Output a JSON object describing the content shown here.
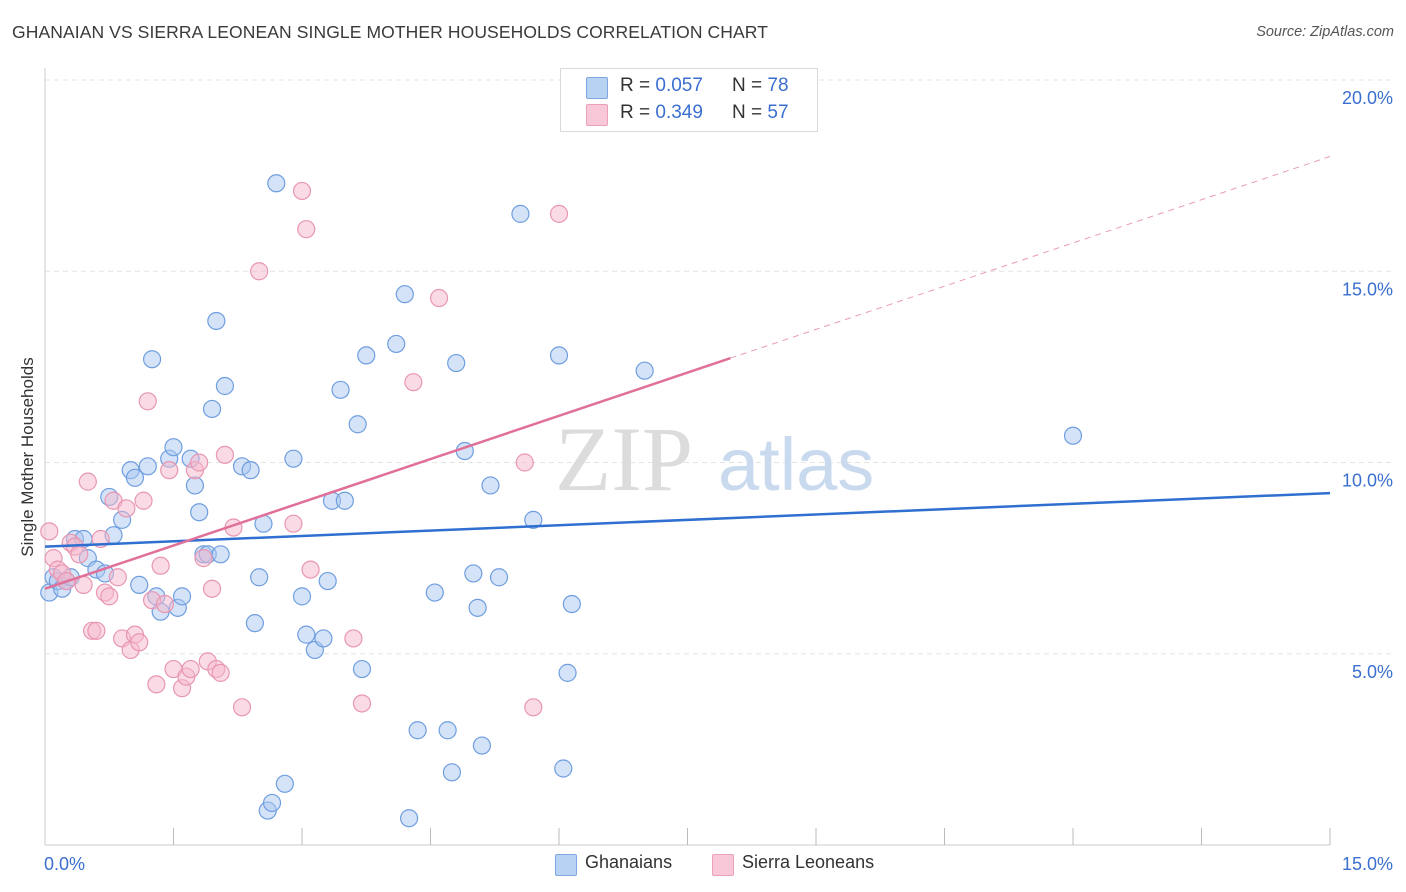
{
  "title": "GHANAIAN VS SIERRA LEONEAN SINGLE MOTHER HOUSEHOLDS CORRELATION CHART",
  "source": "Source: ZipAtlas.com",
  "watermark": {
    "zip": "ZIP",
    "atlas": "atlas"
  },
  "legend": {
    "r_label": "R =",
    "n_label": "N =",
    "rows": [
      {
        "r": "0.057",
        "n": "78"
      },
      {
        "r": "0.349",
        "n": "57"
      }
    ]
  },
  "colors": {
    "blue_fill": "#a9c8f0",
    "blue_stroke": "#6f9ee0",
    "blue_line": "#2f6fd0",
    "pink_fill": "#f5b8cc",
    "pink_stroke": "#e896b2",
    "pink_line": "#e0709a",
    "axis_text": "#3a6fd0",
    "grid": "#e3e3e3"
  },
  "chart_data": {
    "type": "scatter",
    "title": "GHANAIAN VS SIERRA LEONEAN SINGLE MOTHER HOUSEHOLDS CORRELATION CHART",
    "xlabel": "",
    "ylabel": "Single Mother Households",
    "xlim": [
      0,
      15
    ],
    "ylim": [
      0,
      20
    ],
    "x_tick_labels": [
      "0.0%",
      "15.0%"
    ],
    "y_ticks": [
      5,
      10,
      15,
      20
    ],
    "y_tick_labels": [
      "5.0%",
      "10.0%",
      "15.0%",
      "20.0%"
    ],
    "grid": true,
    "legend_position": "bottom",
    "series": [
      {
        "name": "Ghanaians",
        "color": "#a9c8f0",
        "trend": {
          "x": [
            0,
            15
          ],
          "y": [
            7.8,
            9.2
          ],
          "dashed_from": null
        },
        "points": [
          [
            0.05,
            6.6
          ],
          [
            0.1,
            7.0
          ],
          [
            0.15,
            6.9
          ],
          [
            0.2,
            6.7
          ],
          [
            0.25,
            6.9
          ],
          [
            0.3,
            7.0
          ],
          [
            0.35,
            8.0
          ],
          [
            0.45,
            8.0
          ],
          [
            0.5,
            7.5
          ],
          [
            0.6,
            7.2
          ],
          [
            0.7,
            7.1
          ],
          [
            0.75,
            9.1
          ],
          [
            0.8,
            8.1
          ],
          [
            0.9,
            8.5
          ],
          [
            1.0,
            9.8
          ],
          [
            1.05,
            9.6
          ],
          [
            1.1,
            6.8
          ],
          [
            1.2,
            9.9
          ],
          [
            1.25,
            12.7
          ],
          [
            1.3,
            6.5
          ],
          [
            1.35,
            6.1
          ],
          [
            1.45,
            10.1
          ],
          [
            1.5,
            10.4
          ],
          [
            1.55,
            6.2
          ],
          [
            1.6,
            6.5
          ],
          [
            1.7,
            10.1
          ],
          [
            1.75,
            9.4
          ],
          [
            1.8,
            8.7
          ],
          [
            1.85,
            7.6
          ],
          [
            1.9,
            7.6
          ],
          [
            1.95,
            11.4
          ],
          [
            2.0,
            13.7
          ],
          [
            2.05,
            7.6
          ],
          [
            2.1,
            12.0
          ],
          [
            2.3,
            9.9
          ],
          [
            2.4,
            9.8
          ],
          [
            2.45,
            5.8
          ],
          [
            2.5,
            7.0
          ],
          [
            2.55,
            8.4
          ],
          [
            2.6,
            0.9
          ],
          [
            2.65,
            1.1
          ],
          [
            2.7,
            17.3
          ],
          [
            2.8,
            1.6
          ],
          [
            2.9,
            10.1
          ],
          [
            3.0,
            6.5
          ],
          [
            3.05,
            5.5
          ],
          [
            3.15,
            5.1
          ],
          [
            3.25,
            5.4
          ],
          [
            3.3,
            6.9
          ],
          [
            3.35,
            9.0
          ],
          [
            3.45,
            11.9
          ],
          [
            3.5,
            9.0
          ],
          [
            3.65,
            11.0
          ],
          [
            3.7,
            4.6
          ],
          [
            3.75,
            12.8
          ],
          [
            4.1,
            13.1
          ],
          [
            4.2,
            14.4
          ],
          [
            4.25,
            0.7
          ],
          [
            4.35,
            3.0
          ],
          [
            4.55,
            6.6
          ],
          [
            4.7,
            3.0
          ],
          [
            4.75,
            1.9
          ],
          [
            4.8,
            12.6
          ],
          [
            4.9,
            10.3
          ],
          [
            5.0,
            7.1
          ],
          [
            5.05,
            6.2
          ],
          [
            5.1,
            2.6
          ],
          [
            5.2,
            9.4
          ],
          [
            5.3,
            7.0
          ],
          [
            5.55,
            16.5
          ],
          [
            5.7,
            8.5
          ],
          [
            6.0,
            12.8
          ],
          [
            6.05,
            2.0
          ],
          [
            6.1,
            4.5
          ],
          [
            6.15,
            6.3
          ],
          [
            7.0,
            12.4
          ],
          [
            12.0,
            10.7
          ]
        ]
      },
      {
        "name": "Sierra Leoneans",
        "color": "#f5b8cc",
        "trend": {
          "x": [
            0,
            15
          ],
          "y": [
            6.7,
            18.0
          ],
          "dashed_from": 8.0
        },
        "points": [
          [
            0.05,
            8.2
          ],
          [
            0.1,
            7.5
          ],
          [
            0.15,
            7.2
          ],
          [
            0.2,
            7.1
          ],
          [
            0.25,
            6.9
          ],
          [
            0.3,
            7.9
          ],
          [
            0.35,
            7.8
          ],
          [
            0.4,
            7.6
          ],
          [
            0.45,
            6.8
          ],
          [
            0.5,
            9.5
          ],
          [
            0.55,
            5.6
          ],
          [
            0.6,
            5.6
          ],
          [
            0.65,
            8.0
          ],
          [
            0.7,
            6.6
          ],
          [
            0.75,
            6.5
          ],
          [
            0.8,
            9.0
          ],
          [
            0.85,
            7.0
          ],
          [
            0.9,
            5.4
          ],
          [
            0.95,
            8.8
          ],
          [
            1.0,
            5.1
          ],
          [
            1.05,
            5.5
          ],
          [
            1.1,
            5.3
          ],
          [
            1.15,
            9.0
          ],
          [
            1.2,
            11.6
          ],
          [
            1.25,
            6.4
          ],
          [
            1.3,
            4.2
          ],
          [
            1.35,
            7.3
          ],
          [
            1.4,
            6.3
          ],
          [
            1.45,
            9.8
          ],
          [
            1.5,
            4.6
          ],
          [
            1.6,
            4.1
          ],
          [
            1.65,
            4.4
          ],
          [
            1.7,
            4.6
          ],
          [
            1.75,
            9.8
          ],
          [
            1.8,
            10.0
          ],
          [
            1.85,
            7.5
          ],
          [
            1.9,
            4.8
          ],
          [
            1.95,
            6.7
          ],
          [
            2.0,
            4.6
          ],
          [
            2.05,
            4.5
          ],
          [
            2.1,
            10.2
          ],
          [
            2.2,
            8.3
          ],
          [
            2.3,
            3.6
          ],
          [
            2.5,
            15.0
          ],
          [
            2.9,
            8.4
          ],
          [
            3.0,
            17.1
          ],
          [
            3.05,
            16.1
          ],
          [
            3.1,
            7.2
          ],
          [
            3.6,
            5.4
          ],
          [
            3.7,
            3.7
          ],
          [
            4.3,
            12.1
          ],
          [
            4.6,
            14.3
          ],
          [
            5.6,
            10.0
          ],
          [
            5.7,
            3.6
          ],
          [
            6.0,
            16.5
          ]
        ]
      }
    ]
  }
}
